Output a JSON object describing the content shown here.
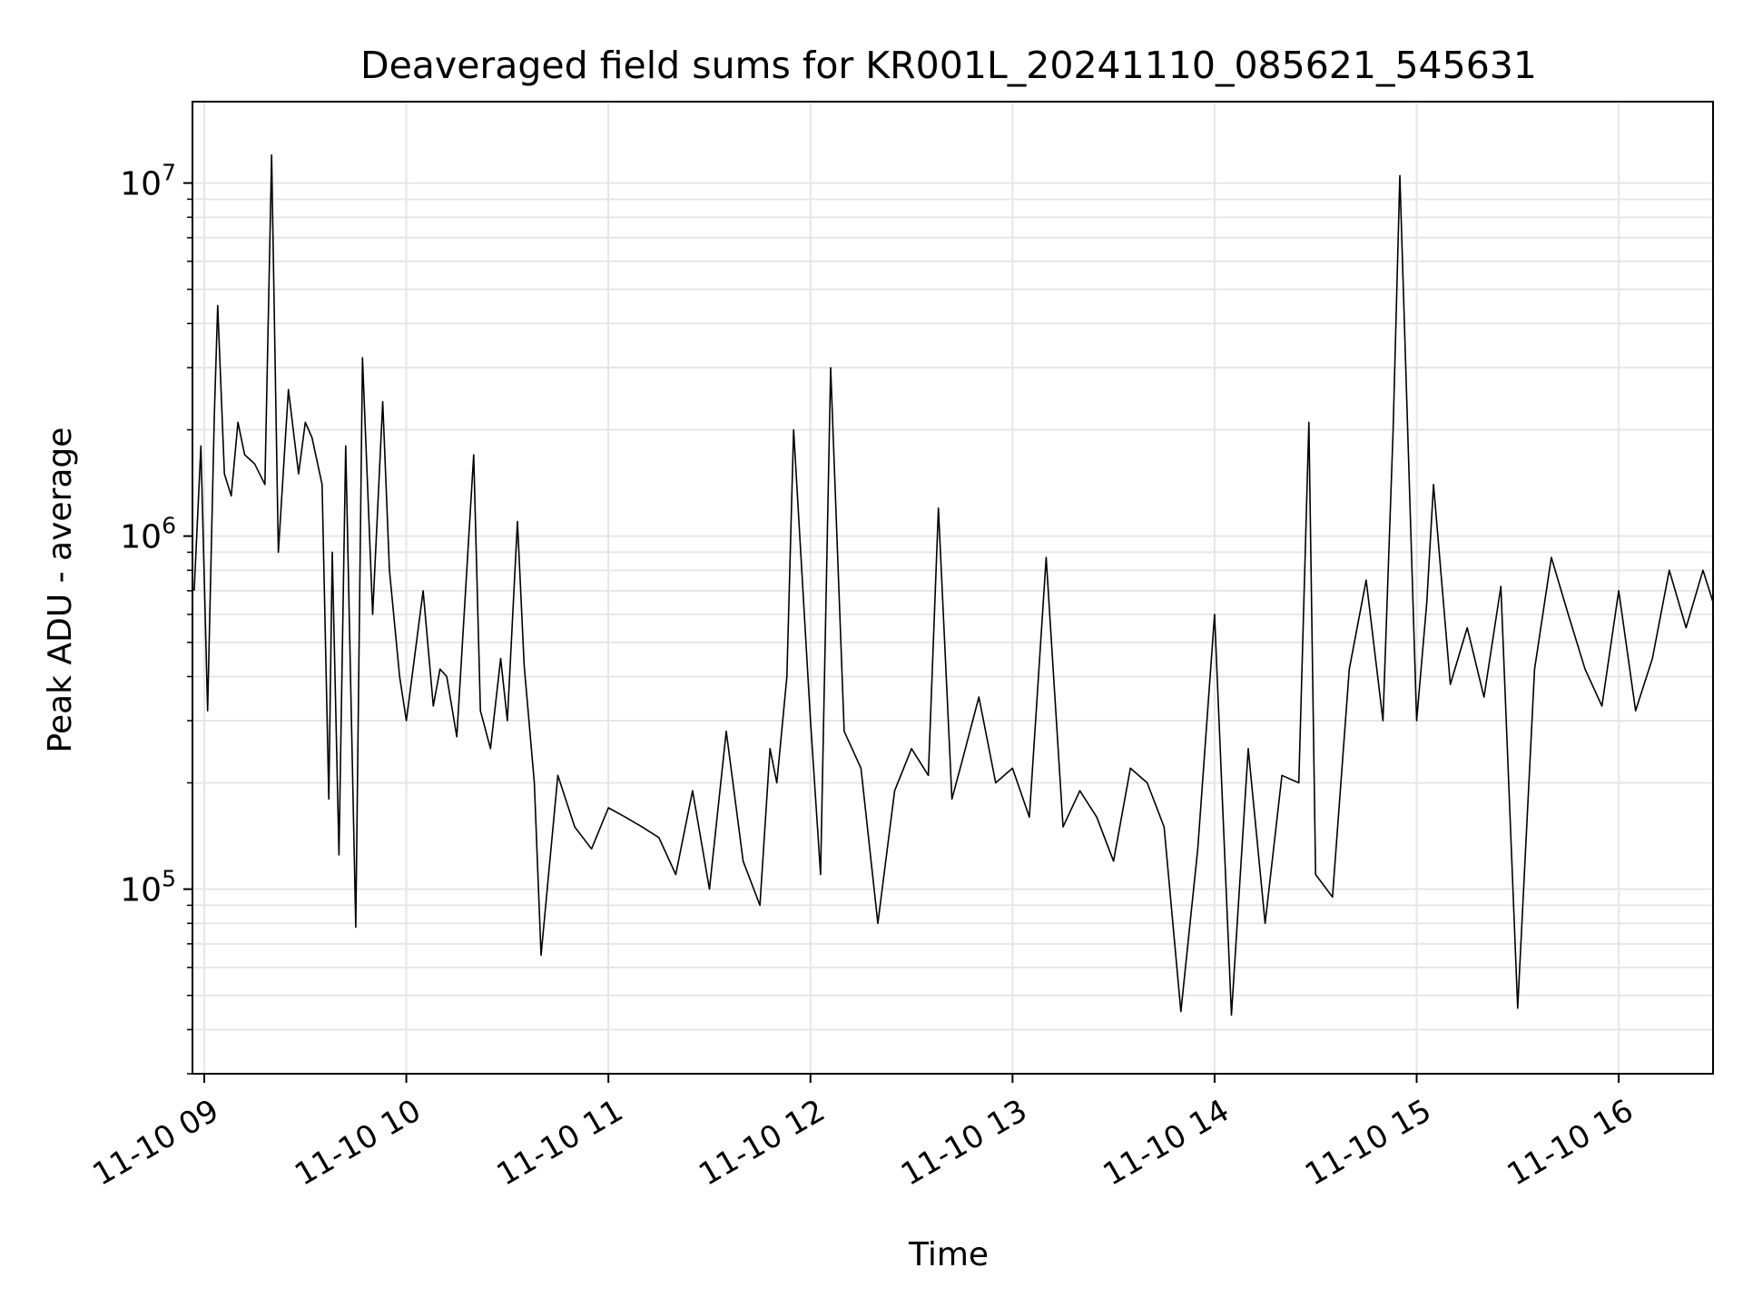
{
  "chart_data": {
    "type": "line",
    "title": "Deaveraged field sums for KR001L_20241110_085621_545631",
    "xlabel": "Time",
    "ylabel": "Peak ADU - average",
    "y_scale": "log",
    "ylim": [
      30000,
      17000000
    ],
    "xlim": [
      "2024-11-10 08:56:30",
      "2024-11-10 16:28:00"
    ],
    "grid": true,
    "legend": "none",
    "line_color": "#000000",
    "grid_color": "#e6e6e6",
    "x_ticks": [
      {
        "label": "11-10 09",
        "value": "2024-11-10 09:00:00"
      },
      {
        "label": "11-10 10",
        "value": "2024-11-10 10:00:00"
      },
      {
        "label": "11-10 11",
        "value": "2024-11-10 11:00:00"
      },
      {
        "label": "11-10 12",
        "value": "2024-11-10 12:00:00"
      },
      {
        "label": "11-10 13",
        "value": "2024-11-10 13:00:00"
      },
      {
        "label": "11-10 14",
        "value": "2024-11-10 14:00:00"
      },
      {
        "label": "11-10 15",
        "value": "2024-11-10 15:00:00"
      },
      {
        "label": "11-10 16",
        "value": "2024-11-10 16:00:00"
      }
    ],
    "y_ticks": [
      {
        "base": "10",
        "exp": "5",
        "value": 100000
      },
      {
        "base": "10",
        "exp": "6",
        "value": 1000000
      },
      {
        "base": "10",
        "exp": "7",
        "value": 10000000
      }
    ],
    "series": [
      {
        "x": [
          "2024-11-10 08:57:00",
          "2024-11-10 08:59:00",
          "2024-11-10 09:01:00",
          "2024-11-10 09:03:00",
          "2024-11-10 09:04:00",
          "2024-11-10 09:06:00",
          "2024-11-10 09:08:00",
          "2024-11-10 09:10:00",
          "2024-11-10 09:12:00",
          "2024-11-10 09:15:00",
          "2024-11-10 09:18:00",
          "2024-11-10 09:20:00",
          "2024-11-10 09:22:00",
          "2024-11-10 09:25:00",
          "2024-11-10 09:28:00",
          "2024-11-10 09:30:00",
          "2024-11-10 09:32:00",
          "2024-11-10 09:35:00",
          "2024-11-10 09:37:00",
          "2024-11-10 09:38:00",
          "2024-11-10 09:40:00",
          "2024-11-10 09:42:00",
          "2024-11-10 09:45:00",
          "2024-11-10 09:47:00",
          "2024-11-10 09:50:00",
          "2024-11-10 09:53:00",
          "2024-11-10 09:55:00",
          "2024-11-10 09:58:00",
          "2024-11-10 10:00:00",
          "2024-11-10 10:05:00",
          "2024-11-10 10:08:00",
          "2024-11-10 10:10:00",
          "2024-11-10 10:12:00",
          "2024-11-10 10:15:00",
          "2024-11-10 10:20:00",
          "2024-11-10 10:22:00",
          "2024-11-10 10:25:00",
          "2024-11-10 10:28:00",
          "2024-11-10 10:30:00",
          "2024-11-10 10:33:00",
          "2024-11-10 10:35:00",
          "2024-11-10 10:38:00",
          "2024-11-10 10:40:00",
          "2024-11-10 10:45:00",
          "2024-11-10 10:50:00",
          "2024-11-10 10:55:00",
          "2024-11-10 11:00:00",
          "2024-11-10 11:05:00",
          "2024-11-10 11:10:00",
          "2024-11-10 11:15:00",
          "2024-11-10 11:20:00",
          "2024-11-10 11:25:00",
          "2024-11-10 11:30:00",
          "2024-11-10 11:35:00",
          "2024-11-10 11:40:00",
          "2024-11-10 11:45:00",
          "2024-11-10 11:48:00",
          "2024-11-10 11:50:00",
          "2024-11-10 11:53:00",
          "2024-11-10 11:55:00",
          "2024-11-10 12:00:00",
          "2024-11-10 12:03:00",
          "2024-11-10 12:06:00",
          "2024-11-10 12:10:00",
          "2024-11-10 12:15:00",
          "2024-11-10 12:20:00",
          "2024-11-10 12:25:00",
          "2024-11-10 12:30:00",
          "2024-11-10 12:35:00",
          "2024-11-10 12:38:00",
          "2024-11-10 12:42:00",
          "2024-11-10 12:45:00",
          "2024-11-10 12:50:00",
          "2024-11-10 12:55:00",
          "2024-11-10 13:00:00",
          "2024-11-10 13:05:00",
          "2024-11-10 13:10:00",
          "2024-11-10 13:15:00",
          "2024-11-10 13:20:00",
          "2024-11-10 13:25:00",
          "2024-11-10 13:30:00",
          "2024-11-10 13:35:00",
          "2024-11-10 13:40:00",
          "2024-11-10 13:45:00",
          "2024-11-10 13:50:00",
          "2024-11-10 13:55:00",
          "2024-11-10 14:00:00",
          "2024-11-10 14:05:00",
          "2024-11-10 14:10:00",
          "2024-11-10 14:15:00",
          "2024-11-10 14:20:00",
          "2024-11-10 14:25:00",
          "2024-11-10 14:28:00",
          "2024-11-10 14:30:00",
          "2024-11-10 14:35:00",
          "2024-11-10 14:40:00",
          "2024-11-10 14:45:00",
          "2024-11-10 14:50:00",
          "2024-11-10 14:53:00",
          "2024-11-10 14:55:00",
          "2024-11-10 15:00:00",
          "2024-11-10 15:03:00",
          "2024-11-10 15:05:00",
          "2024-11-10 15:10:00",
          "2024-11-10 15:15:00",
          "2024-11-10 15:20:00",
          "2024-11-10 15:25:00",
          "2024-11-10 15:30:00",
          "2024-11-10 15:35:00",
          "2024-11-10 15:40:00",
          "2024-11-10 15:45:00",
          "2024-11-10 15:50:00",
          "2024-11-10 15:55:00",
          "2024-11-10 16:00:00",
          "2024-11-10 16:05:00",
          "2024-11-10 16:10:00",
          "2024-11-10 16:15:00",
          "2024-11-10 16:20:00",
          "2024-11-10 16:25:00",
          "2024-11-10 16:28:00"
        ],
        "y": [
          700000,
          1800000,
          320000,
          2200000,
          4500000,
          1500000,
          1300000,
          2100000,
          1700000,
          1600000,
          1400000,
          12000000,
          900000,
          2600000,
          1500000,
          2100000,
          1900000,
          1400000,
          180000,
          900000,
          125000,
          1800000,
          78000,
          3200000,
          600000,
          2400000,
          800000,
          400000,
          300000,
          700000,
          330000,
          420000,
          400000,
          270000,
          1700000,
          320000,
          250000,
          450000,
          300000,
          1100000,
          430000,
          200000,
          65000,
          210000,
          150000,
          130000,
          170000,
          160000,
          150000,
          140000,
          110000,
          190000,
          100000,
          280000,
          120000,
          90000,
          250000,
          200000,
          400000,
          2000000,
          300000,
          110000,
          3000000,
          280000,
          220000,
          80000,
          190000,
          250000,
          210000,
          1200000,
          180000,
          230000,
          350000,
          200000,
          220000,
          160000,
          870000,
          150000,
          190000,
          160000,
          120000,
          220000,
          200000,
          150000,
          45000,
          130000,
          600000,
          44000,
          250000,
          80000,
          210000,
          200000,
          2100000,
          110000,
          95000,
          420000,
          750000,
          300000,
          2000000,
          10500000,
          300000,
          650000,
          1400000,
          380000,
          550000,
          350000,
          720000,
          46000,
          420000,
          870000,
          600000,
          420000,
          330000,
          700000,
          320000,
          450000,
          800000,
          550000,
          800000,
          650000
        ]
      }
    ]
  }
}
